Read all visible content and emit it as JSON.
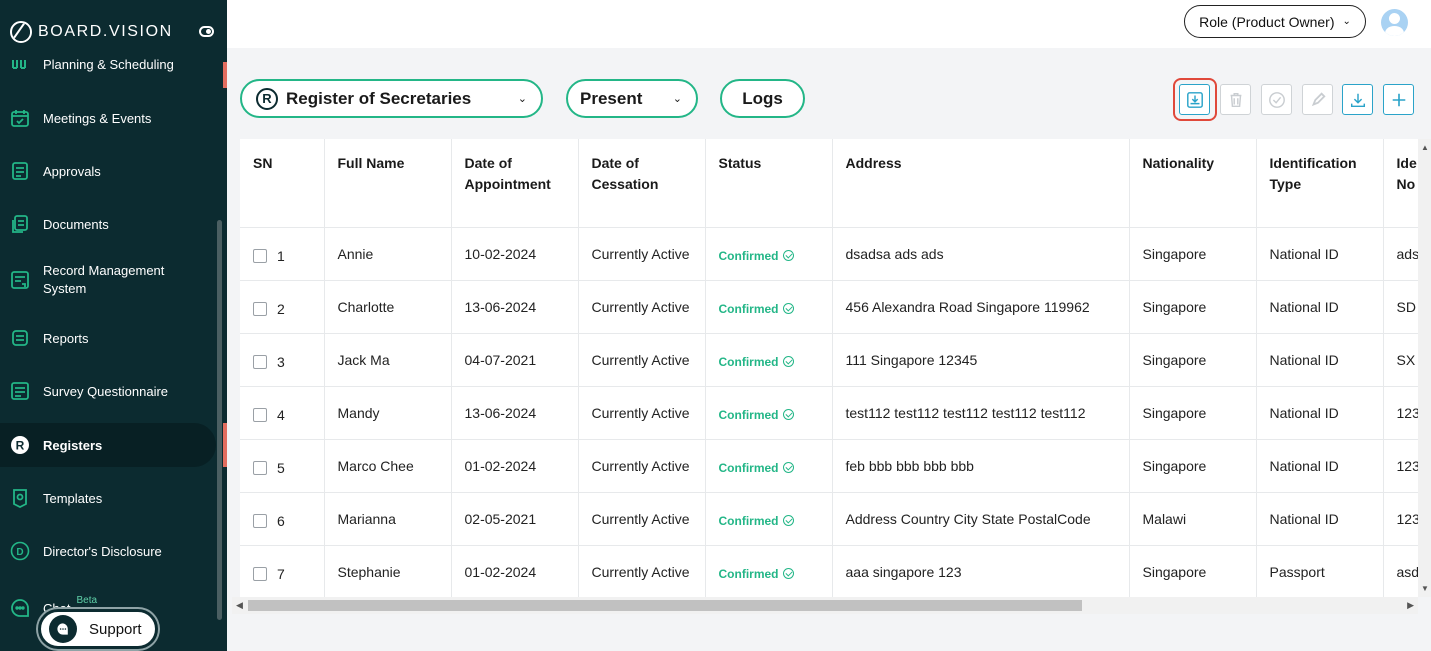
{
  "brand": {
    "name": "BOARD.VISION"
  },
  "sidebar": {
    "items": [
      {
        "label": "Planning & Scheduling",
        "icon": "calendar-grid-icon"
      },
      {
        "label": "Meetings & Events",
        "icon": "calendar-check-icon"
      },
      {
        "label": "Approvals",
        "icon": "checklist-icon"
      },
      {
        "label": "Documents",
        "icon": "documents-icon"
      },
      {
        "label": "Record Management System",
        "icon": "record-icon"
      },
      {
        "label": "Reports",
        "icon": "report-icon"
      },
      {
        "label": "Survey Questionnaire",
        "icon": "survey-icon"
      },
      {
        "label": "Registers",
        "icon": "registers-icon",
        "active": true
      },
      {
        "label": "Templates",
        "icon": "templates-icon"
      },
      {
        "label": "Director's Disclosure",
        "icon": "disclosure-icon"
      },
      {
        "label": "Chat",
        "icon": "chat-icon",
        "badge": "Beta"
      }
    ],
    "support_label": "Support"
  },
  "header": {
    "role_label": "Role (Product Owner)"
  },
  "filters": {
    "register": "Register of Secretaries",
    "register_badge": "R",
    "period": "Present",
    "logs": "Logs"
  },
  "toolbar": {
    "buttons": [
      "import-icon",
      "delete-icon",
      "approve-icon",
      "edit-icon",
      "download-icon",
      "add-icon"
    ]
  },
  "table": {
    "headers": [
      "SN",
      "Full Name",
      "Date of Appointment",
      "Date of Cessation",
      "Status",
      "Address",
      "Nationality",
      "Identification Type",
      "Identification No"
    ],
    "headers_visible": [
      "SN",
      "Full Name",
      "Date of Appointment",
      "Date of Cessation",
      "Status",
      "Address",
      "Nationality",
      "Identification Type",
      "Ide No"
    ],
    "rows": [
      {
        "sn": "1",
        "name": "Annie",
        "appointment": "10-02-2024",
        "cessation": "Currently Active",
        "status": "Confirmed",
        "address": "dsadsa ads ads",
        "nationality": "Singapore",
        "id_type": "National ID",
        "id_no": "ads"
      },
      {
        "sn": "2",
        "name": "Charlotte",
        "appointment": "13-06-2024",
        "cessation": "Currently Active",
        "status": "Confirmed",
        "address": "456 Alexandra Road Singapore 119962",
        "nationality": "Singapore",
        "id_type": "National ID",
        "id_no": "SD"
      },
      {
        "sn": "3",
        "name": "Jack Ma",
        "appointment": "04-07-2021",
        "cessation": "Currently Active",
        "status": "Confirmed",
        "address": "111 Singapore 12345",
        "nationality": "Singapore",
        "id_type": "National ID",
        "id_no": "SX"
      },
      {
        "sn": "4",
        "name": "Mandy",
        "appointment": "13-06-2024",
        "cessation": "Currently Active",
        "status": "Confirmed",
        "address": "test112 test112 test112 test112 test112",
        "nationality": "Singapore",
        "id_type": "National ID",
        "id_no": "123"
      },
      {
        "sn": "5",
        "name": "Marco Chee",
        "appointment": "01-02-2024",
        "cessation": "Currently Active",
        "status": "Confirmed",
        "address": "feb bbb bbb bbb bbb",
        "nationality": "Singapore",
        "id_type": "National ID",
        "id_no": "123"
      },
      {
        "sn": "6",
        "name": "Marianna",
        "appointment": "02-05-2021",
        "cessation": "Currently Active",
        "status": "Confirmed",
        "address": "Address Country City State PostalCode",
        "nationality": "Malawi",
        "id_type": "National ID",
        "id_no": "123"
      },
      {
        "sn": "7",
        "name": "Stephanie",
        "appointment": "01-02-2024",
        "cessation": "Currently Active",
        "status": "Confirmed",
        "address": "aaa singapore 123",
        "nationality": "Singapore",
        "id_type": "Passport",
        "id_no": "asd"
      }
    ]
  }
}
